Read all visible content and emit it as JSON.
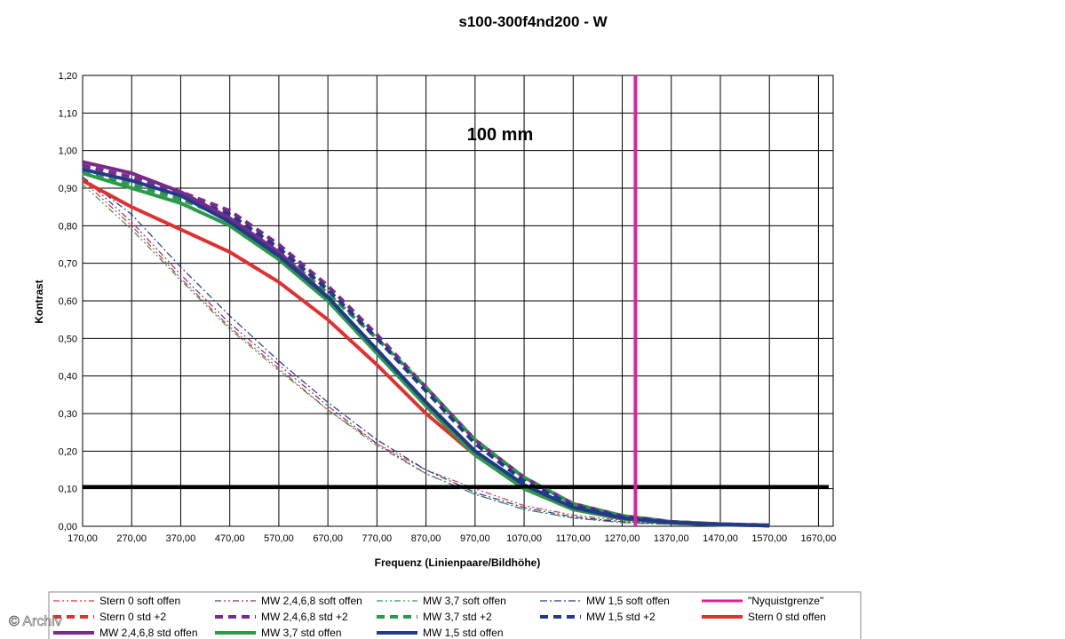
{
  "chart_data": {
    "type": "line",
    "title": "s100-300f4nd200 - W",
    "annotation": "100 mm",
    "xlabel": "Frequenz (Linienpaare/Bildhöhe)",
    "ylabel": "Kontrast",
    "xlim": [
      170,
      1700
    ],
    "ylim": [
      0,
      1.2
    ],
    "x_ticks": [
      "170,00",
      "270,00",
      "370,00",
      "470,00",
      "570,00",
      "670,00",
      "770,00",
      "870,00",
      "970,00",
      "1070,00",
      "1170,00",
      "1270,00",
      "1370,00",
      "1470,00",
      "1570,00",
      "1670,00"
    ],
    "y_ticks": [
      "0,00",
      "0,10",
      "0,20",
      "0,30",
      "0,40",
      "0,50",
      "0,60",
      "0,70",
      "0,80",
      "0,90",
      "1,00",
      "1,10",
      "1,20"
    ],
    "grid": true,
    "legend_position": "bottom",
    "threshold_line": {
      "y": 0.105,
      "color": "#000000"
    },
    "nyquist_line": {
      "x": 1297,
      "color": "#e0209b"
    },
    "series": [
      {
        "name": "Stern 0 soft offen",
        "color": "#e03030",
        "style": "dashdotdot",
        "width": 1.2,
        "x": [
          170,
          270,
          370,
          470,
          570,
          670,
          770,
          870,
          970,
          1070,
          1170,
          1270,
          1370,
          1470,
          1570
        ],
        "y": [
          0.92,
          0.8,
          0.66,
          0.53,
          0.42,
          0.31,
          0.22,
          0.15,
          0.1,
          0.055,
          0.03,
          0.015,
          0.008,
          0.004,
          0.002
        ]
      },
      {
        "name": "MW 2,4,6,8 soft offen",
        "color": "#7a2a8a",
        "style": "dashdotdot",
        "width": 1.2,
        "x": [
          170,
          270,
          370,
          470,
          570,
          670,
          770,
          870,
          970,
          1070,
          1170,
          1270,
          1370,
          1470,
          1570
        ],
        "y": [
          0.93,
          0.81,
          0.67,
          0.54,
          0.43,
          0.32,
          0.22,
          0.14,
          0.085,
          0.045,
          0.022,
          0.01,
          0.005,
          0.002,
          0.001
        ]
      },
      {
        "name": "MW 3,7 soft offen",
        "color": "#2a9a48",
        "style": "dashdotdot",
        "width": 1.2,
        "x": [
          170,
          270,
          370,
          470,
          570,
          670,
          770,
          870,
          970,
          1070,
          1170,
          1270,
          1370,
          1470,
          1570
        ],
        "y": [
          0.91,
          0.79,
          0.655,
          0.525,
          0.415,
          0.31,
          0.215,
          0.14,
          0.085,
          0.045,
          0.022,
          0.01,
          0.005,
          0.002,
          0.001
        ]
      },
      {
        "name": "MW 1,5 soft offen",
        "color": "#223a8a",
        "style": "dashdot",
        "width": 1.2,
        "x": [
          170,
          270,
          370,
          470,
          570,
          670,
          770,
          870,
          970,
          1070,
          1170,
          1270,
          1370,
          1470,
          1570
        ],
        "y": [
          0.93,
          0.83,
          0.69,
          0.56,
          0.44,
          0.33,
          0.23,
          0.15,
          0.09,
          0.05,
          0.025,
          0.012,
          0.006,
          0.003,
          0.001
        ]
      },
      {
        "name": "\"Nyquistgrenze\"",
        "color": "#e0209b",
        "style": "solid",
        "width": 3,
        "kind": "nyquist"
      },
      {
        "name": "Stern 0 std +2",
        "color": "#e03030",
        "style": "dash",
        "width": 4,
        "x": [
          170,
          270,
          370,
          470,
          570,
          670,
          770,
          870,
          970,
          1070,
          1170,
          1270,
          1370,
          1470,
          1570
        ],
        "y": [
          0.95,
          0.92,
          0.88,
          0.83,
          0.74,
          0.63,
          0.5,
          0.37,
          0.23,
          0.13,
          0.06,
          0.028,
          0.012,
          0.006,
          0.003
        ]
      },
      {
        "name": "MW 2,4,6,8 std +2",
        "color": "#7a2a8a",
        "style": "dash",
        "width": 4,
        "x": [
          170,
          270,
          370,
          470,
          570,
          670,
          770,
          870,
          970,
          1070,
          1170,
          1270,
          1370,
          1470,
          1570
        ],
        "y": [
          0.96,
          0.93,
          0.89,
          0.84,
          0.75,
          0.64,
          0.51,
          0.37,
          0.23,
          0.13,
          0.06,
          0.028,
          0.012,
          0.006,
          0.003
        ]
      },
      {
        "name": "MW 3,7 std +2",
        "color": "#2a9a48",
        "style": "dash",
        "width": 4,
        "x": [
          170,
          270,
          370,
          470,
          570,
          670,
          770,
          870,
          970,
          1070,
          1170,
          1270,
          1370,
          1470,
          1570
        ],
        "y": [
          0.94,
          0.91,
          0.87,
          0.82,
          0.73,
          0.62,
          0.5,
          0.37,
          0.23,
          0.13,
          0.06,
          0.028,
          0.012,
          0.006,
          0.003
        ]
      },
      {
        "name": "MW 1,5 std +2",
        "color": "#223a8a",
        "style": "dash",
        "width": 4,
        "x": [
          170,
          270,
          370,
          470,
          570,
          670,
          770,
          870,
          970,
          1070,
          1170,
          1270,
          1370,
          1470,
          1570
        ],
        "y": [
          0.95,
          0.92,
          0.88,
          0.83,
          0.74,
          0.63,
          0.5,
          0.36,
          0.22,
          0.12,
          0.055,
          0.025,
          0.011,
          0.005,
          0.002
        ]
      },
      {
        "name": "Stern 0 std offen",
        "color": "#e03030",
        "style": "solid",
        "width": 4,
        "x": [
          170,
          270,
          370,
          470,
          570,
          670,
          770,
          870,
          970,
          1070,
          1170,
          1270,
          1370,
          1470,
          1570
        ],
        "y": [
          0.92,
          0.85,
          0.79,
          0.73,
          0.65,
          0.55,
          0.43,
          0.3,
          0.19,
          0.1,
          0.045,
          0.02,
          0.009,
          0.004,
          0.002
        ]
      },
      {
        "name": "MW 2,4,6,8 std offen",
        "color": "#7a2a8a",
        "style": "solid",
        "width": 4,
        "x": [
          170,
          270,
          370,
          470,
          570,
          670,
          770,
          870,
          970,
          1070,
          1170,
          1270,
          1370,
          1470,
          1570
        ],
        "y": [
          0.97,
          0.94,
          0.89,
          0.82,
          0.73,
          0.61,
          0.47,
          0.33,
          0.2,
          0.11,
          0.05,
          0.022,
          0.01,
          0.005,
          0.002
        ]
      },
      {
        "name": "MW 3,7 std offen",
        "color": "#2a9a48",
        "style": "solid",
        "width": 4,
        "x": [
          170,
          270,
          370,
          470,
          570,
          670,
          770,
          870,
          970,
          1070,
          1170,
          1270,
          1370,
          1470,
          1570
        ],
        "y": [
          0.94,
          0.9,
          0.86,
          0.8,
          0.71,
          0.6,
          0.46,
          0.32,
          0.19,
          0.1,
          0.045,
          0.02,
          0.009,
          0.004,
          0.002
        ]
      },
      {
        "name": "MW 1,5 std offen",
        "color": "#223a8a",
        "style": "solid",
        "width": 4,
        "x": [
          170,
          270,
          370,
          470,
          570,
          670,
          770,
          870,
          970,
          1070,
          1170,
          1270,
          1370,
          1470,
          1570
        ],
        "y": [
          0.95,
          0.92,
          0.88,
          0.81,
          0.72,
          0.61,
          0.47,
          0.33,
          0.2,
          0.11,
          0.05,
          0.022,
          0.01,
          0.005,
          0.002
        ]
      }
    ]
  },
  "watermark": "© Archiv"
}
